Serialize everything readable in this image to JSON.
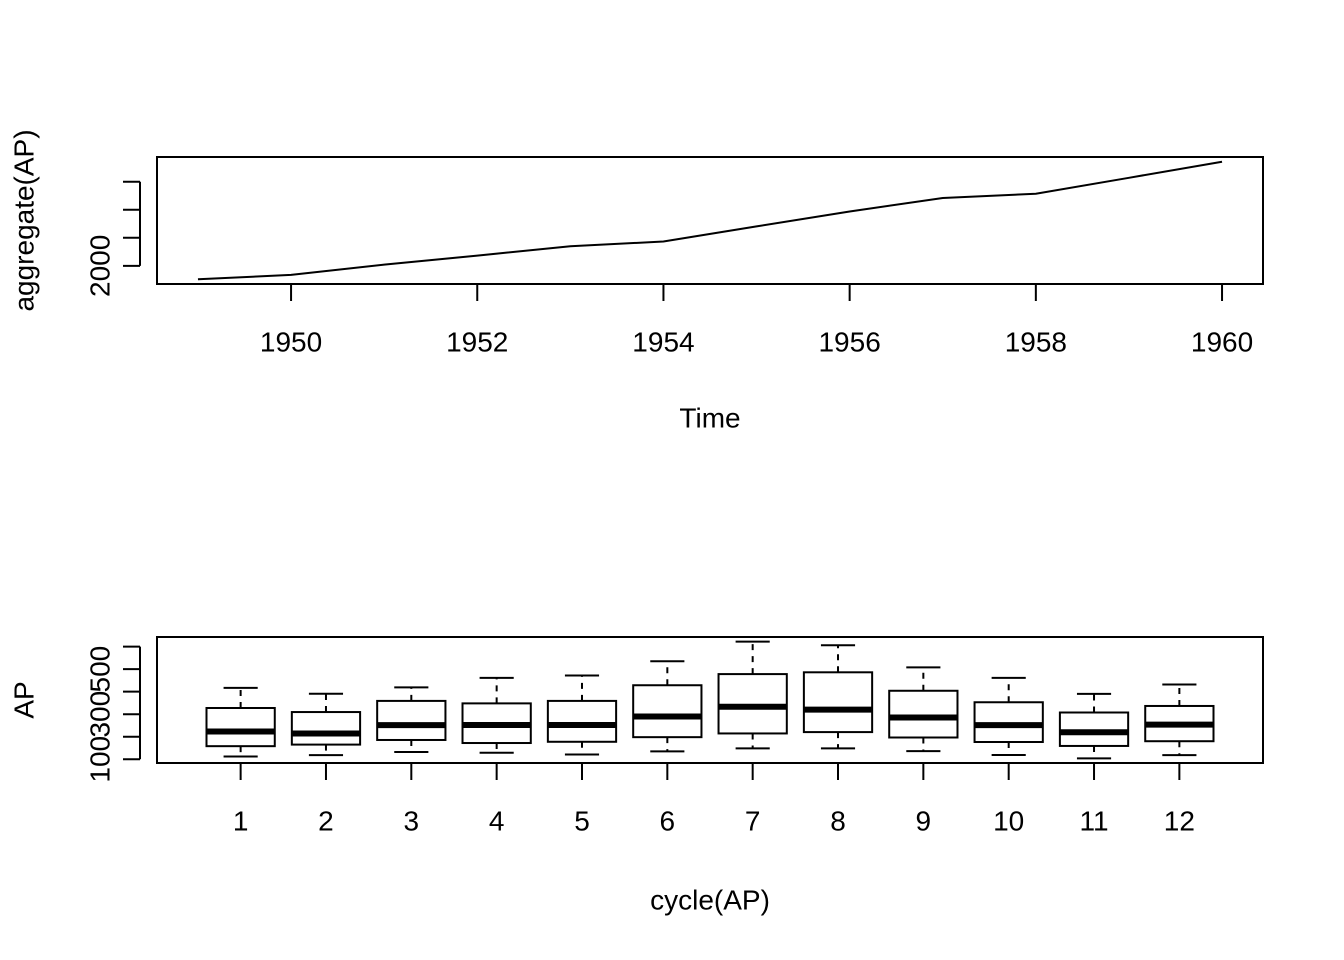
{
  "chart_data": [
    {
      "type": "line",
      "ylabel": "aggregate(AP)",
      "xlabel": "Time",
      "x": [
        1949,
        1950,
        1951,
        1952,
        1953,
        1954,
        1955,
        1956,
        1957,
        1958,
        1959,
        1960
      ],
      "values": [
        1520,
        1676,
        2042,
        2364,
        2700,
        2867,
        3408,
        3939,
        4421,
        4572,
        5140,
        5714
      ],
      "color": "#000000",
      "xlim": [
        1948.56,
        1960.44
      ],
      "xticks": [
        1950,
        1952,
        1954,
        1956,
        1958,
        1960
      ],
      "ylim": [
        1352,
        5882
      ],
      "yticks": [
        2000,
        {
          "value": 3000,
          "label": null
        },
        {
          "value": 4000,
          "label": null
        },
        {
          "value": 5000,
          "label": null
        }
      ]
    },
    {
      "type": "boxplot",
      "ylabel": "AP",
      "xlabel": "cycle(AP)",
      "categories": [
        "1",
        "2",
        "3",
        "4",
        "5",
        "6",
        "7",
        "8",
        "9",
        "10",
        "11",
        "12"
      ],
      "min": [
        112,
        118,
        132,
        129,
        121,
        135,
        148,
        148,
        136,
        119,
        104,
        118
      ],
      "q1": [
        158,
        165,
        185.5,
        172,
        177.5,
        198,
        214.5,
        220.5,
        196.5,
        176.5,
        159,
        180
      ],
      "median": [
        223,
        214.5,
        251.5,
        252,
        252,
        289.5,
        333,
        320,
        285.5,
        251.5,
        220,
        253.5
      ],
      "q3": [
        327.5,
        309.5,
        359,
        348,
        359,
        428.5,
        478,
        486,
        404,
        353,
        307.5,
        336.5
      ],
      "max": [
        417,
        391,
        419,
        461,
        472,
        535,
        622,
        606,
        508,
        461,
        390,
        432
      ],
      "color": "#ffffff",
      "ylim": [
        83.28,
        642.72
      ],
      "yticks": [
        100,
        {
          "value": 200,
          "label": null
        },
        300,
        {
          "value": 400,
          "label": null
        },
        500,
        {
          "value": 600,
          "label": null
        }
      ]
    }
  ]
}
